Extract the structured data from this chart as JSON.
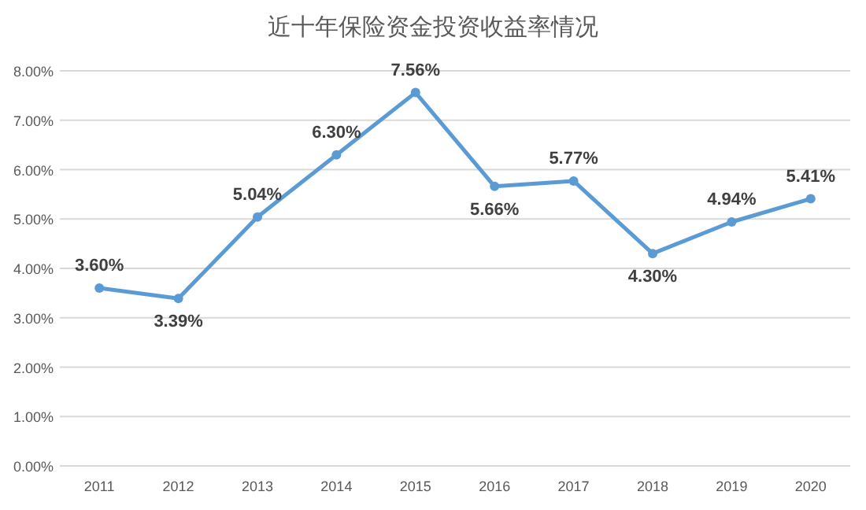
{
  "chart_data": {
    "type": "line",
    "title": "近十年保险资金投资收益率情况",
    "categories": [
      "2011",
      "2012",
      "2013",
      "2014",
      "2015",
      "2016",
      "2017",
      "2018",
      "2019",
      "2020"
    ],
    "series": [
      {
        "color": "#5b9bd5",
        "values": [
          3.6,
          3.39,
          5.04,
          6.3,
          7.56,
          5.66,
          5.77,
          4.3,
          4.94,
          5.41
        ],
        "value_labels": [
          "3.60%",
          "3.39%",
          "5.04%",
          "6.30%",
          "7.56%",
          "5.66%",
          "5.77%",
          "4.30%",
          "4.94%",
          "5.41%"
        ]
      }
    ],
    "ylim": [
      0,
      8
    ],
    "yticks": [
      {
        "value": 0,
        "label": "0.00%"
      },
      {
        "value": 1,
        "label": "1.00%"
      },
      {
        "value": 2,
        "label": "2.00%"
      },
      {
        "value": 3,
        "label": "3.00%"
      },
      {
        "value": 4,
        "label": "4.00%"
      },
      {
        "value": 5,
        "label": "5.00%"
      },
      {
        "value": 6,
        "label": "6.00%"
      },
      {
        "value": 7,
        "label": "7.00%"
      },
      {
        "value": 8,
        "label": "8.00%"
      }
    ],
    "grid": "y",
    "marker": "circle",
    "line_style": "solid"
  }
}
